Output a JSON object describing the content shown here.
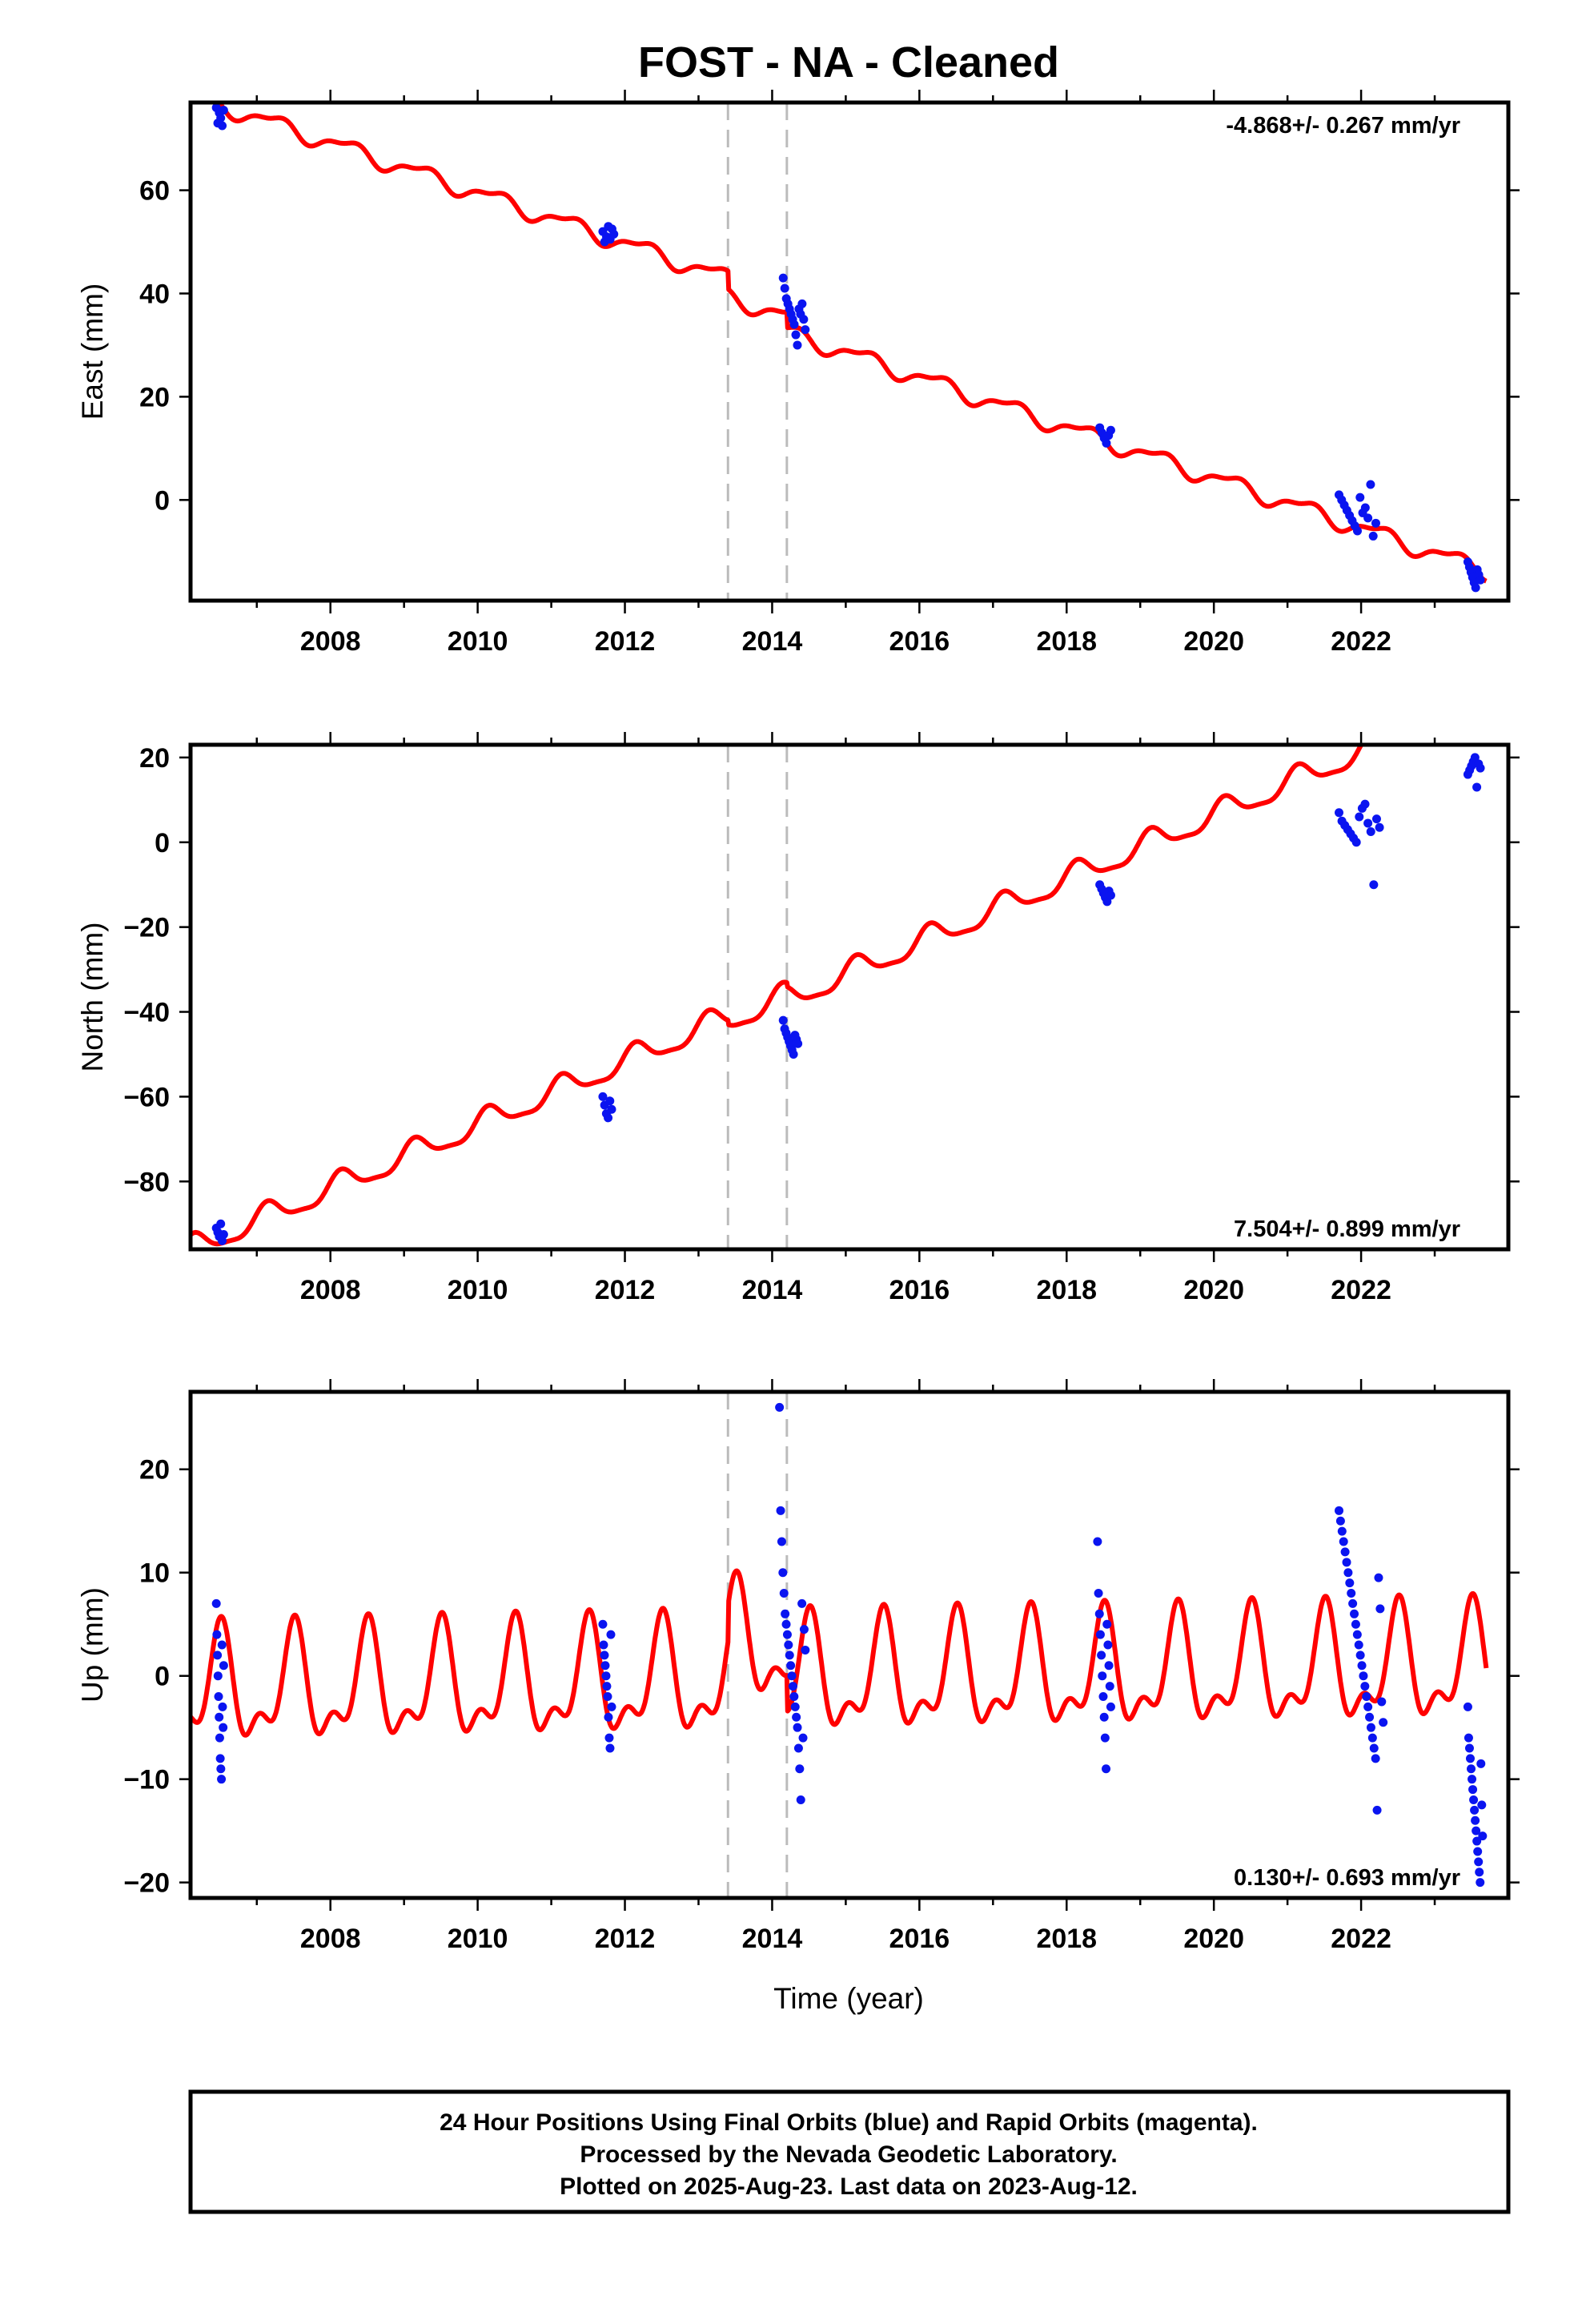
{
  "chart_data": {
    "title": "FOST  - NA - Cleaned",
    "xlabel": "Time (year)",
    "xlim": [
      2006.1,
      2024.0
    ],
    "x_ticks": [
      2008,
      2010,
      2012,
      2014,
      2016,
      2018,
      2020,
      2022
    ],
    "x_tick_labels": [
      "2008",
      "2010",
      "2012",
      "2014",
      "2016",
      "2018",
      "2020",
      "2022"
    ],
    "vertical_dashed_lines": [
      2013.4,
      2014.2
    ],
    "legend_colors": {
      "final_orbits": "#0a14f0",
      "model_fit": "#ff0000",
      "event_lines": "#bbbbbb"
    },
    "panels": [
      {
        "type": "scatter",
        "component": "east",
        "ylabel": "East (mm)",
        "ylim": [
          -19.5,
          77
        ],
        "y_ticks": [
          0,
          20,
          40,
          60
        ],
        "y_tick_labels": [
          "0",
          "20",
          "40",
          "60"
        ],
        "rate": "-4.868+/- 0.267 mm/yr",
        "rate_position": "top-right",
        "fit": {
          "intercept_year": 2006.5,
          "intercept": 76.5,
          "slope": -4.868,
          "annual_amp": 1.5,
          "semiannual_amp": 0.6,
          "annual_phase": 0.0,
          "semiannual_phase": 0.7,
          "offsets": [
            {
              "year": 2013.4,
              "step": -3.5
            },
            {
              "year": 2014.2,
              "step": -3.0
            }
          ]
        },
        "clusters": [
          {
            "x_start": 2006.45,
            "x_end": 2006.55,
            "y": [
              76,
              73,
              75,
              74,
              72.5,
              75.5
            ]
          },
          {
            "x_start": 2011.7,
            "x_end": 2011.85,
            "y": [
              52,
              50,
              51,
              53,
              50.5,
              52.5,
              51.5
            ]
          },
          {
            "x_start": 2014.15,
            "x_end": 2014.45,
            "y": [
              43,
              41,
              39,
              38,
              37,
              36,
              35,
              34,
              32,
              30,
              37,
              36,
              38,
              35,
              33
            ]
          },
          {
            "x_start": 2018.45,
            "x_end": 2018.6,
            "y": [
              14,
              13,
              12,
              11,
              12.5,
              13.5
            ]
          },
          {
            "x_start": 2021.7,
            "x_end": 2022.2,
            "y": [
              1,
              0,
              -1,
              -2,
              -3,
              -4,
              -5,
              -6,
              0.5,
              -2.5,
              -1.5,
              -3.5,
              3,
              -7,
              -4.5
            ]
          },
          {
            "x_start": 2023.45,
            "x_end": 2023.62,
            "y": [
              -12,
              -13,
              -14,
              -15,
              -16,
              -17,
              -13.5,
              -14.5,
              -15.5
            ]
          }
        ]
      },
      {
        "type": "scatter",
        "component": "north",
        "ylabel": "North (mm)",
        "ylim": [
          -96,
          23
        ],
        "y_ticks": [
          -80,
          -60,
          -40,
          -20,
          0,
          20
        ],
        "y_tick_labels": [
          "−80",
          "−60",
          "−40",
          "−20",
          "0",
          "20"
        ],
        "rate": "7.504+/- 0.899 mm/yr",
        "rate_position": "bottom-right",
        "fit": {
          "intercept_year": 2006.5,
          "intercept": -93,
          "slope": 7.504,
          "annual_amp": 2.8,
          "semiannual_amp": 0.8,
          "annual_phase": 0.1,
          "semiannual_phase": 0.5,
          "offsets": [
            {
              "year": 2013.4,
              "step": -1.0
            },
            {
              "year": 2014.2,
              "step": -1.0
            }
          ]
        },
        "clusters": [
          {
            "x_start": 2006.45,
            "x_end": 2006.55,
            "y": [
              -91,
              -92,
              -93,
              -90,
              -94,
              -92.5
            ]
          },
          {
            "x_start": 2011.7,
            "x_end": 2011.82,
            "y": [
              -60,
              -62,
              -64,
              -65,
              -61,
              -63
            ]
          },
          {
            "x_start": 2014.15,
            "x_end": 2014.35,
            "y": [
              -42,
              -44,
              -45,
              -46,
              -47,
              -48,
              -49,
              -50,
              -45.5,
              -46.5,
              -47.5
            ]
          },
          {
            "x_start": 2018.45,
            "x_end": 2018.6,
            "y": [
              -10,
              -11,
              -12,
              -13,
              -14,
              -11.5,
              -12.5
            ]
          },
          {
            "x_start": 2021.7,
            "x_end": 2022.25,
            "y": [
              7,
              5,
              4,
              3,
              2,
              1,
              0,
              6,
              8,
              9,
              4.5,
              2.5,
              -10,
              5.5,
              3.5
            ]
          },
          {
            "x_start": 2023.45,
            "x_end": 2023.62,
            "y": [
              16,
              17,
              18,
              19,
              20,
              13,
              18.5,
              17.5
            ]
          }
        ]
      },
      {
        "type": "scatter",
        "component": "up",
        "ylabel": "Up (mm)",
        "ylim": [
          -21.5,
          27.5
        ],
        "y_ticks": [
          -20,
          -10,
          0,
          10,
          20
        ],
        "y_tick_labels": [
          "−20",
          "−10",
          "0",
          "10",
          "20"
        ],
        "rate": "0.130+/- 0.693 mm/yr",
        "rate_position": "bottom-right",
        "fit": {
          "intercept_year": 2006.5,
          "intercept": -1.5,
          "slope": 0.13,
          "annual_amp": 4.8,
          "semiannual_amp": 2.5,
          "annual_phase": 0.75,
          "semiannual_phase": 0.1,
          "offsets": [
            {
              "year": 2013.4,
              "step": 3.5
            },
            {
              "year": 2014.2,
              "step": -3.5
            }
          ]
        },
        "clusters": [
          {
            "x_start": 2006.45,
            "x_end": 2006.55,
            "y": [
              7,
              4,
              2,
              0,
              -2,
              -4,
              -6,
              -8,
              -9,
              -10,
              3,
              -3,
              -5,
              1
            ]
          },
          {
            "x_start": 2011.7,
            "x_end": 2011.82,
            "y": [
              5,
              3,
              2,
              1,
              0,
              -1,
              -2,
              -4,
              -6,
              -7,
              4,
              -3
            ]
          },
          {
            "x_start": 2014.1,
            "x_end": 2014.45,
            "y": [
              26,
              16,
              13,
              10,
              8,
              6,
              5,
              4,
              3,
              2,
              1,
              0,
              -1,
              -2,
              -3,
              -4,
              -5,
              -7,
              -9,
              -12,
              7,
              -6,
              4.5,
              2.5
            ]
          },
          {
            "x_start": 2018.42,
            "x_end": 2018.6,
            "y": [
              13,
              8,
              6,
              4,
              2,
              0,
              -2,
              -4,
              -6,
              -9,
              5,
              3,
              1,
              -1,
              -3
            ]
          },
          {
            "x_start": 2021.7,
            "x_end": 2022.3,
            "y": [
              16,
              15,
              14,
              13,
              12,
              11,
              10,
              9,
              8,
              7,
              6,
              5,
              4,
              3,
              2,
              1,
              0,
              -1,
              -2,
              -3,
              -4,
              -5,
              -6,
              -7,
              -8,
              -13,
              9.5,
              6.5,
              -2.5,
              -4.5
            ]
          },
          {
            "x_start": 2023.45,
            "x_end": 2023.65,
            "y": [
              -3,
              -6,
              -7,
              -8,
              -9,
              -10,
              -11,
              -12,
              -13,
              -14,
              -15,
              -16,
              -17,
              -18,
              -19,
              -20,
              -8.5,
              -12.5,
              -15.5
            ]
          }
        ]
      }
    ]
  },
  "footer": {
    "line1": "24 Hour Positions Using Final Orbits (blue) and Rapid Orbits (magenta).",
    "line2": "Processed by the Nevada Geodetic Laboratory.",
    "line3": "Plotted on 2025-Aug-23. Last data on 2023-Aug-12."
  }
}
